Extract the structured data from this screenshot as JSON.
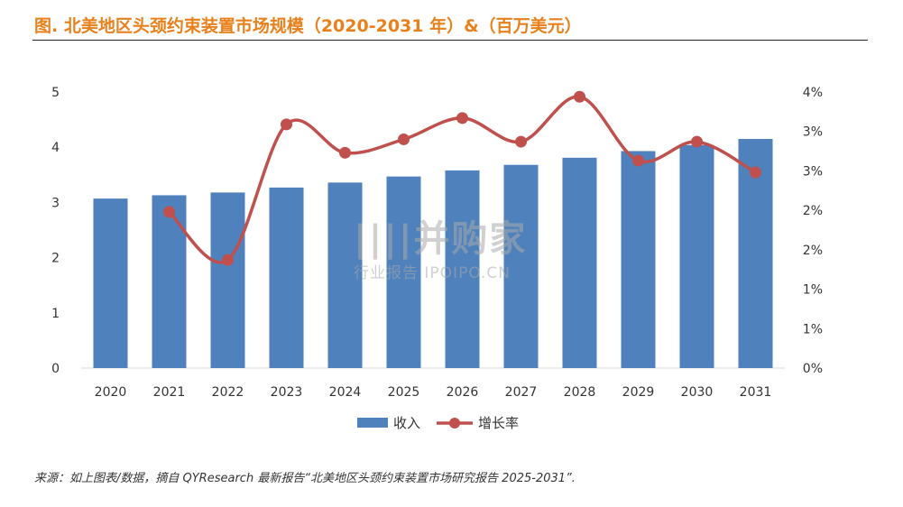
{
  "header": {
    "title": "图.  北美地区头颈约束装置市场规模（2020-2031 年）&（百万美元）"
  },
  "footer": {
    "source": "来源：如上图表/数据，摘自 QYResearch 最新报告“北美地区头颈约束装置市场研究报告 2025-2031”."
  },
  "watermark": {
    "line1": "||||并购家",
    "line2": "行业报告 IPOIPO.CN"
  },
  "colors": {
    "bar": "#4f81bd",
    "line": "#c0504d",
    "title": "#e8801c"
  },
  "chart_data": {
    "type": "bar+line",
    "categories": [
      "2020",
      "2021",
      "2022",
      "2023",
      "2024",
      "2025",
      "2026",
      "2027",
      "2028",
      "2029",
      "2030",
      "2031"
    ],
    "series": [
      {
        "name": "收入",
        "type": "bar",
        "axis": "left",
        "values": [
          3.07,
          3.13,
          3.18,
          3.27,
          3.36,
          3.47,
          3.58,
          3.68,
          3.81,
          3.93,
          4.04,
          4.15
        ]
      },
      {
        "name": "增长率",
        "type": "line",
        "axis": "right",
        "values": [
          null,
          1.98,
          1.37,
          3.09,
          2.73,
          2.9,
          3.17,
          2.87,
          3.44,
          2.63,
          2.87,
          2.48
        ]
      }
    ],
    "left_axis": {
      "ticks": [
        "0",
        "1",
        "2",
        "3",
        "4",
        "5"
      ],
      "min": 0,
      "max": 5
    },
    "right_axis": {
      "ticks": [
        "0%",
        "1%",
        "1%",
        "2%",
        "2%",
        "3%",
        "3%",
        "4%"
      ],
      "min": 0,
      "max": 3.5
    },
    "legend": "bottom-center",
    "grid": false
  }
}
